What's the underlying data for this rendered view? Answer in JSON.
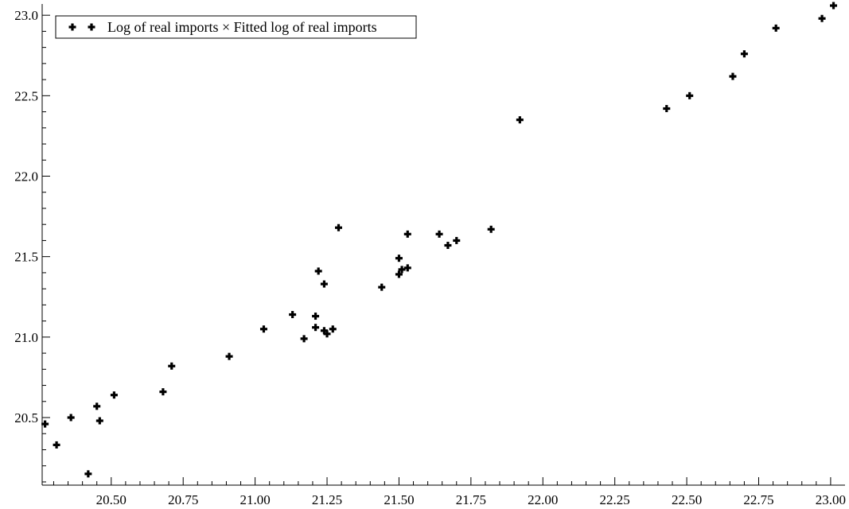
{
  "chart_data": {
    "type": "scatter",
    "title": "",
    "xlabel": "",
    "ylabel": "",
    "xlim": [
      20.26,
      23.05
    ],
    "ylim": [
      20.08,
      23.07
    ],
    "x_ticks": [
      "20.50",
      "20.75",
      "21.00",
      "21.25",
      "21.50",
      "21.75",
      "22.00",
      "22.25",
      "22.50",
      "22.75",
      "23.00"
    ],
    "y_ticks": [
      "20.5",
      "21.0",
      "21.5",
      "22.0",
      "22.5",
      "23.0"
    ],
    "grid": false,
    "legend_position": "top-left",
    "marker_color": "#000000",
    "series": [
      {
        "name": "Log of real imports × Fitted log of real imports",
        "points": [
          [
            20.27,
            20.46
          ],
          [
            20.31,
            20.33
          ],
          [
            20.36,
            20.5
          ],
          [
            20.42,
            20.15
          ],
          [
            20.45,
            20.57
          ],
          [
            20.46,
            20.48
          ],
          [
            20.51,
            20.64
          ],
          [
            20.68,
            20.66
          ],
          [
            20.71,
            20.82
          ],
          [
            20.91,
            20.88
          ],
          [
            21.03,
            21.05
          ],
          [
            21.13,
            21.14
          ],
          [
            21.17,
            20.99
          ],
          [
            21.21,
            21.06
          ],
          [
            21.21,
            21.13
          ],
          [
            21.22,
            21.41
          ],
          [
            21.24,
            21.33
          ],
          [
            21.24,
            21.04
          ],
          [
            21.25,
            21.02
          ],
          [
            21.27,
            21.05
          ],
          [
            21.29,
            21.68
          ],
          [
            21.44,
            21.31
          ],
          [
            21.5,
            21.39
          ],
          [
            21.5,
            21.49
          ],
          [
            21.51,
            21.42
          ],
          [
            21.53,
            21.64
          ],
          [
            21.53,
            21.43
          ],
          [
            21.64,
            21.64
          ],
          [
            21.67,
            21.57
          ],
          [
            21.7,
            21.6
          ],
          [
            21.82,
            21.67
          ],
          [
            21.92,
            22.35
          ],
          [
            22.43,
            22.42
          ],
          [
            22.51,
            22.5
          ],
          [
            22.66,
            22.62
          ],
          [
            22.7,
            22.76
          ],
          [
            22.81,
            22.92
          ],
          [
            22.97,
            22.98
          ],
          [
            23.01,
            23.06
          ]
        ]
      }
    ]
  }
}
